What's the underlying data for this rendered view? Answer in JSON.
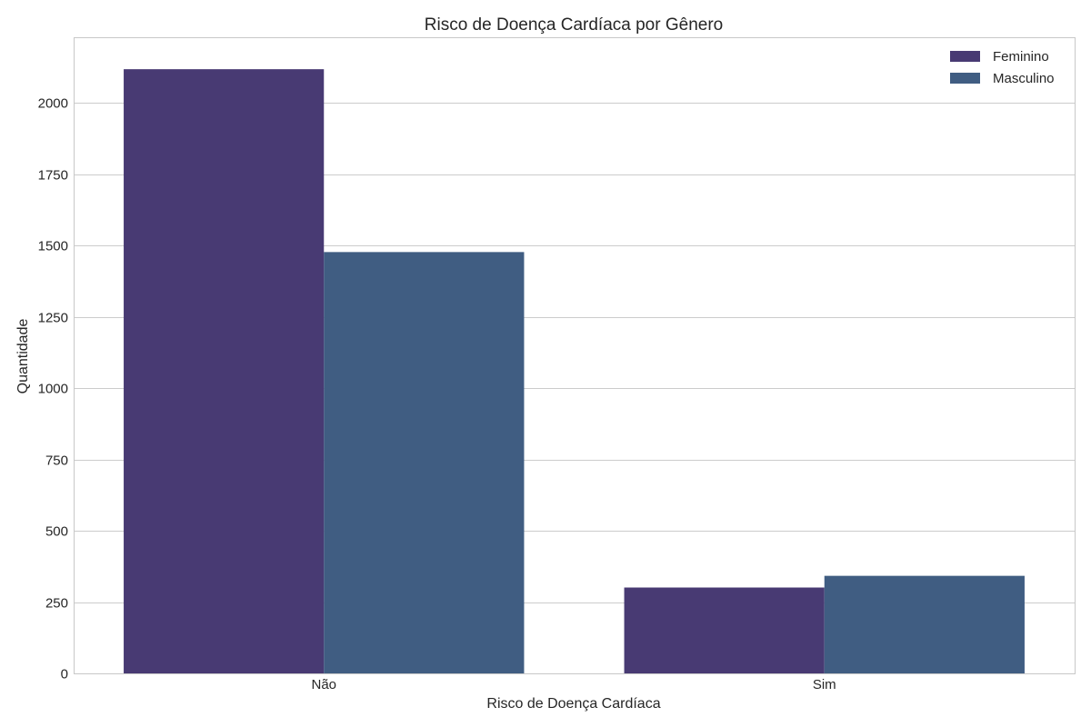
{
  "chart_data": {
    "type": "bar",
    "title": "Risco de Doença Cardíaca por Gênero",
    "xlabel": "Risco de Doença Cardíaca",
    "ylabel": "Quantidade",
    "categories": [
      "Não",
      "Sim"
    ],
    "series": [
      {
        "name": "Feminino",
        "values": [
          2118,
          301
        ],
        "color": "#483a73"
      },
      {
        "name": "Masculino",
        "values": [
          1477,
          342
        ],
        "color": "#405d82"
      }
    ],
    "ylim": [
      0,
      2230
    ],
    "yticks": [
      0,
      250,
      500,
      750,
      1000,
      1250,
      1500,
      1750,
      2000
    ],
    "grid": "horizontal",
    "legend_position": "top-right"
  }
}
